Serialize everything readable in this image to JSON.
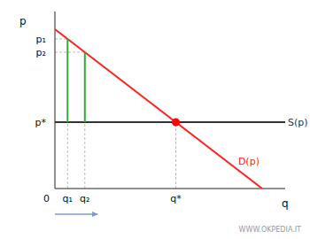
{
  "chart_data": {
    "type": "line",
    "x_label": "q",
    "y_label": "p",
    "annotation": "WWW.OKPEDIA.IT",
    "xlim": [
      0,
      10
    ],
    "ylim": [
      0,
      10
    ],
    "xticks": [
      0,
      {
        "value": 0.55,
        "label": "q₁"
      },
      {
        "value": 1.3,
        "label": "q₂"
      },
      {
        "value": 5.25,
        "label": "q*"
      }
    ],
    "yticks": [
      {
        "value": 8.45,
        "label": "p₁"
      },
      {
        "value": 7.7,
        "label": "p₂"
      },
      {
        "value": 3.75,
        "label": "p*"
      }
    ],
    "series": [
      {
        "name": "D(p)",
        "type": "line",
        "color": "#ff2020",
        "x": [
          0,
          9
        ],
        "values": [
          9,
          0
        ]
      },
      {
        "name": "S(p)",
        "type": "line",
        "color": "#333333",
        "x": [
          0,
          10
        ],
        "values": [
          3.75,
          3.75
        ]
      },
      {
        "type": "bar",
        "color": "#33aa33",
        "x": [
          0.55,
          1.3
        ],
        "values": [
          8.45,
          7.7
        ]
      },
      {
        "type": "scatter",
        "color": "#ff0000",
        "x": [
          5.25
        ],
        "values": [
          3.75
        ]
      }
    ]
  }
}
